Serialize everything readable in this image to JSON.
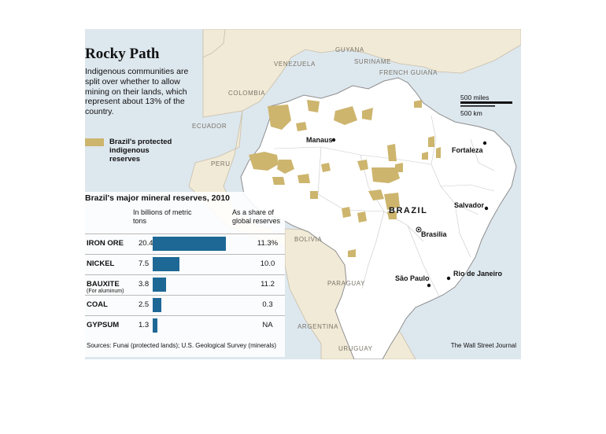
{
  "header": {
    "title": "Rocky Path",
    "subtitle": "Indigenous communities are split over whether to allow mining on their lands, which represent about 13% of the country."
  },
  "legend": {
    "label": "Brazil's protected indigenous reserves",
    "swatch_color": "#cdb56e"
  },
  "map": {
    "country_labels": [
      "VENEZUELA",
      "GUYANA",
      "SURINAME",
      "FRENCH GUIANA",
      "COLOMBIA",
      "ECUADOR",
      "PERU",
      "BOLIVIA",
      "PARAGUAY",
      "ARGENTINA",
      "URUGUAY"
    ],
    "brazil_label": "BRAZIL",
    "cities": [
      "Manaus",
      "Fortaleza",
      "Salvador",
      "Brasilia",
      "São Paulo",
      "Rio de Janeiro"
    ],
    "scale": {
      "miles_label": "500 miles",
      "km_label": "500 km"
    },
    "colors": {
      "sea": "#dde7ee",
      "land": "#f1ead7",
      "brazil": "#ffffff",
      "reserve": "#cdb56e",
      "bar": "#1e6896"
    }
  },
  "table": {
    "title": "Brazil's major mineral reserves, 2010",
    "col_tons": "In billions of metric tons",
    "col_share": "As a share of global reserves",
    "rows": [
      {
        "name": "IRON ORE",
        "note": "",
        "value": "20.4",
        "share": "11.3%"
      },
      {
        "name": "NICKEL",
        "note": "",
        "value": "7.5",
        "share": "10.0"
      },
      {
        "name": "BAUXITE",
        "note": "(For aluminum)",
        "value": "3.8",
        "share": "11.2"
      },
      {
        "name": "COAL",
        "note": "",
        "value": "2.5",
        "share": "0.3"
      },
      {
        "name": "GYPSUM",
        "note": "",
        "value": "1.3",
        "share": "NA"
      }
    ]
  },
  "chart_data": {
    "type": "bar",
    "title": "Brazil's major mineral reserves, 2010",
    "categories": [
      "IRON ORE",
      "NICKEL",
      "BAUXITE",
      "COAL",
      "GYPSUM"
    ],
    "values": [
      20.4,
      7.5,
      3.8,
      2.5,
      1.3
    ],
    "share_of_global_reserves": [
      "11.3%",
      "10.0",
      "11.2",
      "0.3",
      "NA"
    ],
    "unit": "In billions of metric tons"
  },
  "footer": {
    "source": "Sources: Funai (protected lands); U.S. Geological Survey (minerals)",
    "credit": "The Wall Street Journal"
  }
}
